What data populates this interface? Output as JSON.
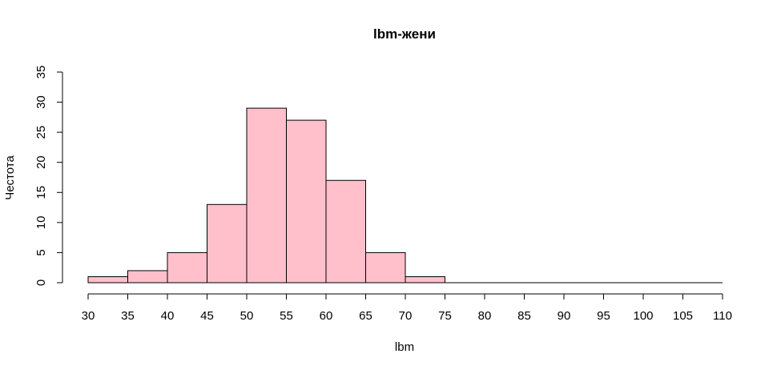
{
  "chart_data": {
    "type": "bar",
    "title": "lbm-жени",
    "xlabel": "lbm",
    "ylabel": "Честота",
    "bins": [
      30,
      35,
      40,
      45,
      50,
      55,
      60,
      65,
      70,
      75,
      80,
      85,
      90,
      95,
      100,
      105,
      110
    ],
    "counts": [
      1,
      2,
      5,
      13,
      29,
      27,
      17,
      5,
      1,
      0,
      0,
      0,
      0,
      0,
      0,
      0
    ],
    "xticks": [
      "30",
      "35",
      "40",
      "45",
      "50",
      "55",
      "60",
      "65",
      "70",
      "75",
      "80",
      "85",
      "90",
      "95",
      "100",
      "105",
      "110"
    ],
    "yticks": [
      "0",
      "5",
      "10",
      "15",
      "20",
      "25",
      "30",
      "35"
    ],
    "xlim": [
      30,
      110
    ],
    "ylim": [
      0,
      35
    ],
    "grid": false,
    "legend": "none",
    "colors": {
      "bar_fill": "#ffc0cb",
      "bar_stroke": "#000000",
      "axis": "#000000",
      "text": "#000000"
    }
  }
}
